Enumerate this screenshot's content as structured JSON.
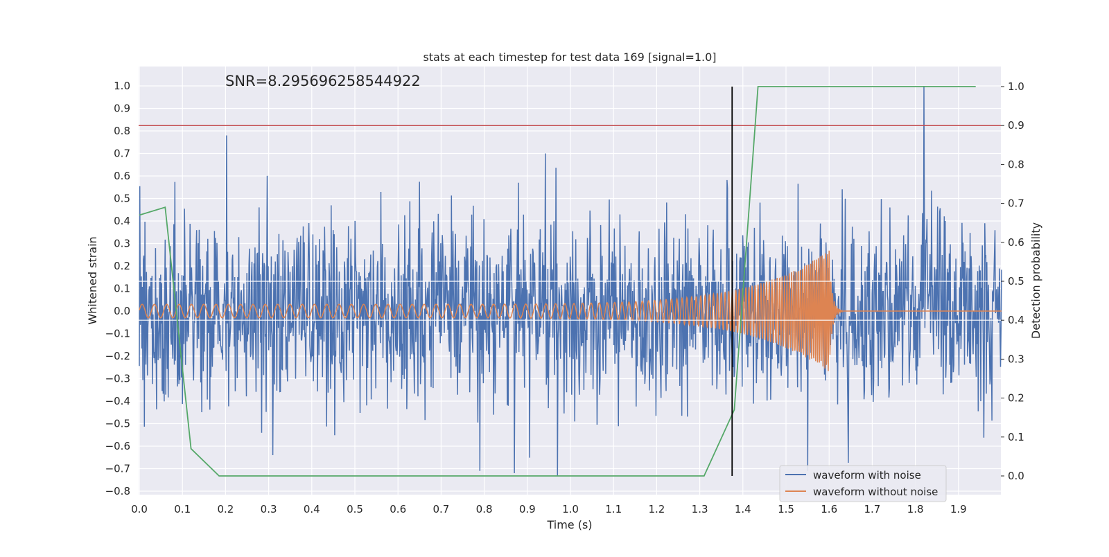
{
  "chart_data": {
    "type": "line",
    "title": "stats at each timestep for test data 169 [signal=1.0]",
    "annotation": "SNR=8.295696258544922",
    "xlabel": "Time (s)",
    "ylabel_left": "Whitened strain",
    "ylabel_right": "Detection probability",
    "xlim": [
      0.0,
      2.0
    ],
    "ylim_left": [
      -0.82,
      1.08
    ],
    "ylim_right": [
      -0.045,
      1.035
    ],
    "x_ticks": [
      "0.0",
      "0.1",
      "0.2",
      "0.3",
      "0.4",
      "0.5",
      "0.6",
      "0.7",
      "0.8",
      "0.9",
      "1.0",
      "1.1",
      "1.2",
      "1.3",
      "1.4",
      "1.5",
      "1.6",
      "1.7",
      "1.8",
      "1.9"
    ],
    "y_ticks_left": [
      "−0.8",
      "−0.7",
      "−0.6",
      "−0.5",
      "−0.4",
      "−0.3",
      "−0.2",
      "−0.1",
      "0.0",
      "0.1",
      "0.2",
      "0.3",
      "0.4",
      "0.5",
      "0.6",
      "0.7",
      "0.8",
      "0.9",
      "1.0"
    ],
    "y_ticks_right": [
      "0.0",
      "0.1",
      "0.2",
      "0.3",
      "0.4",
      "0.5",
      "0.6",
      "0.7",
      "0.8",
      "0.9",
      "1.0"
    ],
    "grid": true,
    "legend_position": "lower-right",
    "series": [
      {
        "name": "waveform with noise",
        "color": "#4c72b0",
        "axis": "left",
        "description_points": {
          "x_range": [
            0.0,
            2.0
          ],
          "typical_amplitude": 0.25,
          "peaks": [
            [
              0.203,
              0.78
            ],
            [
              1.82,
              1.0
            ],
            [
              0.97,
              -0.73
            ],
            [
              0.79,
              -0.71
            ],
            [
              1.55,
              -0.71
            ],
            [
              0.31,
              -0.64
            ]
          ]
        }
      },
      {
        "name": "waveform without noise",
        "color": "#dd8452",
        "axis": "left",
        "chirp": {
          "x_start": 0.0,
          "x_merger": 1.6,
          "x_end": 2.0,
          "amplitude_start": 0.03,
          "amplitude_peak": 0.27,
          "frequency_start_hz": 35,
          "frequency_peak_hz": 250
        }
      },
      {
        "color": "#55a868",
        "axis": "right",
        "x": [
          0.0,
          0.06,
          0.12,
          0.185,
          1.31,
          1.38,
          1.435,
          1.94
        ],
        "y": [
          0.67,
          0.69,
          0.07,
          0.0,
          0.0,
          0.17,
          1.0,
          1.0
        ]
      }
    ],
    "threshold_line": {
      "axis": "right",
      "y": 0.9,
      "color": "#c44e52"
    },
    "event_marker": {
      "x": 1.375,
      "y_range_right": [
        0.0,
        1.0
      ],
      "color": "#000000"
    },
    "extra_hlines_right": [
      0.4,
      0.5
    ]
  }
}
